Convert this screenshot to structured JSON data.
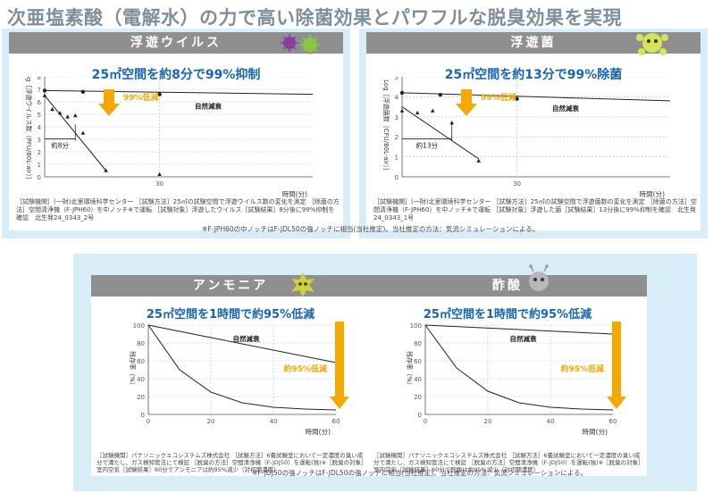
{
  "page_title": "次亜塩素酸（電解水）の力で高い除菌効果とパワフルな脱臭効果を実現",
  "colors": {
    "accent_blue": "#1565b4",
    "arrow_orange": "#f5a800",
    "header_gray": "#8f8f8f",
    "panel_blue": "#d7edf7"
  },
  "panels": [
    {
      "header": "浮遊ウイルス",
      "subtitle": "25㎡空間を約8分で99%抑制",
      "note": "［試験機関］(一財)北里環境科学センター ［試験方法］25㎡の試験空間で浮遊ウイルス数の変化を測定 ［除菌の方法］空間清浄機（F-JPH60）を中ノッチ※で運転 ［試験対象］浮遊したウイルス［試験結果］8分後に99%抑制を確認　北生発24_0343_2号"
    },
    {
      "header": "浮遊菌",
      "subtitle": "25㎡空間を約13分で99%除菌",
      "note": "［試験機関］(一財)北里環境科学センター ［試験方法］25㎡の試験空間で浮遊菌数の変化を測定 ［除菌の方法］空間清浄機（F-JPH60）を中ノッチ※で運転 ［試験対象］浮遊した菌［試験結果］13分後に99%抑制を確認　北生発24_0343_1号"
    },
    {
      "header": "アンモニア",
      "subtitle": "25㎡空間を1時間で約95%低減",
      "note": "［試験機関］パナソニックエコシステムズ株式会社 ［試験方法］6畳試験室において一定濃度の臭い成分で満たし、ガス検知管法にて検証 ［脱臭の方法］空間清浄機（F-JDJ50）を運転(強)※［脱臭の対象］室内空気［試験結果］60分でアンモニアは約95%減少（対初期濃度）"
    },
    {
      "header": "酢酸",
      "subtitle": "25㎡空間を1時間で約95%低減",
      "note": "［試験機関］パナソニックエコシステムズ株式会社 ［試験方法］6畳試験室において一定濃度の臭い成分で満たし、ガス検知管法にて検証 ［脱臭の方法］空間清浄機（F-JDJ50）を運転(強)※［脱臭の対象］室内空気［試験結果］60分で酢酸は約95%減少（対初期濃度）"
    }
  ],
  "footnote_top": "※F-JPH60の中ノッチはF-JDL50の強ノッチに相当(当社推定)。当社推定の方法：気流シミュレーションによる。",
  "footnote_bottom": "※F-JDJ50の強ノッチはF-JDL50の強ノッチに相当(当社推定)。当社推定の方法：気流シミュレーションによる。",
  "chart_data": [
    {
      "type": "scatter",
      "ylabel": "Log［浮遊ウイルス数（PFU/80L-air）］",
      "xlabel": "時間(分)",
      "xlim": [
        0,
        70
      ],
      "ylim": [
        0,
        8
      ],
      "x_ticks": [
        30
      ],
      "y_ticks": [
        0,
        1,
        2,
        3,
        4,
        5,
        6,
        7,
        8
      ],
      "series": [
        {
          "name": "自然減衰",
          "marker": "circle",
          "x": [
            0,
            10,
            30
          ],
          "y": [
            6.9,
            6.8,
            6.6
          ],
          "fit": [
            [
              0,
              6.9
            ],
            [
              70,
              6.6
            ]
          ]
        },
        {
          "marker": "triangle",
          "x": [
            0,
            2,
            4,
            6,
            8,
            10,
            16
          ],
          "y": [
            6.5,
            5.4,
            5.1,
            4.8,
            4.9,
            3.5,
            0.5
          ],
          "fit": [
            [
              0,
              6.5
            ],
            [
              16,
              0.5
            ]
          ]
        },
        {
          "marker": "triangle",
          "x": [
            30
          ],
          "y": [
            0.2
          ]
        }
      ],
      "annotations": [
        "99%低減",
        "約8分"
      ]
    },
    {
      "type": "scatter",
      "ylabel": "Log［浮遊菌数（CFU/80L-air）］",
      "xlabel": "時間(分)",
      "xlim": [
        0,
        70
      ],
      "ylim": [
        0,
        5
      ],
      "x_ticks": [
        30
      ],
      "y_ticks": [
        0,
        1,
        2,
        3,
        4,
        5
      ],
      "series": [
        {
          "name": "自然減衰",
          "marker": "circle",
          "x": [
            0,
            10,
            30
          ],
          "y": [
            4.2,
            4.1,
            3.9
          ],
          "fit": [
            [
              0,
              4.2
            ],
            [
              70,
              3.8
            ]
          ]
        },
        {
          "marker": "triangle",
          "x": [
            0,
            4,
            8,
            13,
            20
          ],
          "y": [
            3.3,
            3.2,
            3.3,
            2.7,
            0.8
          ],
          "fit": [
            [
              0,
              3.5
            ],
            [
              20,
              0.9
            ]
          ]
        }
      ],
      "annotations": [
        "99%低減",
        "約13分"
      ]
    },
    {
      "type": "line",
      "ylabel": "残存率（%）",
      "xlabel": "時間(分)",
      "xlim": [
        0,
        60
      ],
      "ylim": [
        0,
        100
      ],
      "x_ticks": [
        0,
        20,
        40,
        60
      ],
      "y_ticks": [
        0,
        20,
        40,
        60,
        80,
        100
      ],
      "series": [
        {
          "name": "自然減衰",
          "x": [
            0,
            60
          ],
          "y": [
            100,
            58
          ]
        },
        {
          "x": [
            0,
            10,
            20,
            30,
            40,
            50,
            60
          ],
          "y": [
            100,
            50,
            25,
            13,
            8,
            6,
            5
          ]
        }
      ],
      "annotations": [
        "約95%低減"
      ]
    },
    {
      "type": "line",
      "ylabel": "残存率（%）",
      "xlabel": "時間(分)",
      "xlim": [
        0,
        60
      ],
      "ylim": [
        0,
        100
      ],
      "x_ticks": [
        0,
        20,
        40,
        60
      ],
      "y_ticks": [
        0,
        20,
        40,
        60,
        80,
        100
      ],
      "series": [
        {
          "name": "自然減衰",
          "x": [
            0,
            60
          ],
          "y": [
            100,
            90
          ]
        },
        {
          "x": [
            0,
            10,
            20,
            30,
            40,
            50,
            60
          ],
          "y": [
            100,
            52,
            26,
            13,
            8,
            6,
            5
          ]
        }
      ],
      "annotations": [
        "約95%低減"
      ]
    }
  ]
}
